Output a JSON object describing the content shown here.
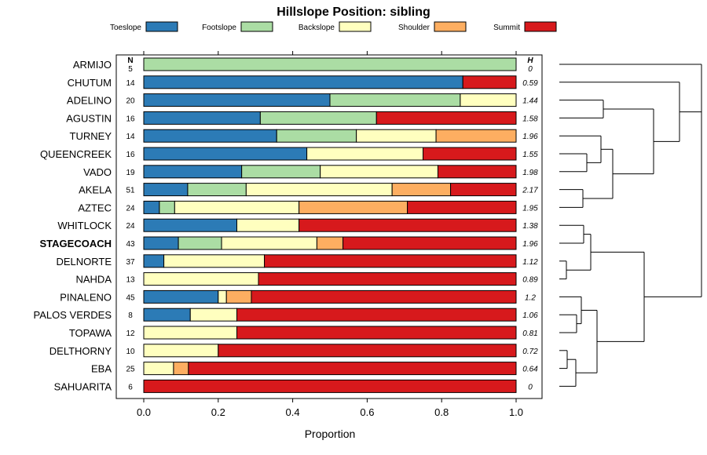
{
  "chart_data": {
    "type": "bar",
    "subtype": "stacked-horizontal-proportion",
    "title": "Hillslope Position: sibling",
    "xlabel": "Proportion",
    "xlim": [
      0,
      1
    ],
    "xticks": [
      0,
      0.2,
      0.4,
      0.6,
      0.8,
      1
    ],
    "xtick_labels": [
      "0.0",
      "0.2",
      "0.4",
      "0.6",
      "0.8",
      "1.0"
    ],
    "n_header": "N",
    "h_header": "H",
    "highlighted": "STAGECOACH",
    "legend": [
      {
        "name": "Toeslope",
        "color": "#2c7bb6"
      },
      {
        "name": "Footslope",
        "color": "#abdda4"
      },
      {
        "name": "Backslope",
        "color": "#ffffbf"
      },
      {
        "name": "Shoulder",
        "color": "#fdae61"
      },
      {
        "name": "Summit",
        "color": "#d7191c"
      }
    ],
    "categories": [
      "ARMIJO",
      "CHUTUM",
      "ADELINO",
      "AGUSTIN",
      "TURNEY",
      "QUEENCREEK",
      "VADO",
      "AKELA",
      "AZTEC",
      "WHITLOCK",
      "STAGECOACH",
      "DELNORTE",
      "NAHDA",
      "PINALENO",
      "PALOS VERDES",
      "TOPAWA",
      "DELTHORNY",
      "EBA",
      "SAHUARITA"
    ],
    "n": [
      "5",
      "14",
      "20",
      "16",
      "14",
      "16",
      "19",
      "51",
      "24",
      "24",
      "43",
      "37",
      "13",
      "45",
      "8",
      "12",
      "10",
      "25",
      "6"
    ],
    "h": [
      "0",
      "0.59",
      "1.44",
      "1.58",
      "1.96",
      "1.55",
      "1.98",
      "2.17",
      "1.95",
      "1.38",
      "1.96",
      "1.12",
      "0.89",
      "1.2",
      "1.06",
      "0.81",
      "0.72",
      "0.64",
      "0"
    ],
    "series": [
      {
        "name": "Toeslope",
        "values": [
          0.0,
          0.857,
          0.5,
          0.313,
          0.357,
          0.438,
          0.263,
          0.118,
          0.042,
          0.25,
          0.093,
          0.054,
          0.0,
          0.2,
          0.125,
          0.0,
          0.0,
          0.0,
          0.0
        ]
      },
      {
        "name": "Footslope",
        "values": [
          1.0,
          0.0,
          0.35,
          0.312,
          0.214,
          0.0,
          0.211,
          0.157,
          0.041,
          0.0,
          0.116,
          0.0,
          0.0,
          0.0,
          0.0,
          0.0,
          0.0,
          0.0,
          0.0
        ]
      },
      {
        "name": "Backslope",
        "values": [
          0.0,
          0.0,
          0.15,
          0.0,
          0.214,
          0.312,
          0.316,
          0.392,
          0.334,
          0.167,
          0.256,
          0.27,
          0.308,
          0.022,
          0.125,
          0.25,
          0.2,
          0.08,
          0.0
        ]
      },
      {
        "name": "Shoulder",
        "values": [
          0.0,
          0.0,
          0.0,
          0.0,
          0.215,
          0.0,
          0.0,
          0.157,
          0.291,
          0.0,
          0.07,
          0.0,
          0.0,
          0.067,
          0.0,
          0.0,
          0.0,
          0.04,
          0.0
        ]
      },
      {
        "name": "Summit",
        "values": [
          0.0,
          0.143,
          0.0,
          0.375,
          0.0,
          0.25,
          0.21,
          0.176,
          0.292,
          0.583,
          0.465,
          0.676,
          0.692,
          0.711,
          0.75,
          0.75,
          0.8,
          0.88,
          1.0
        ]
      }
    ],
    "dendrogram": {
      "leaves": [
        "ARMIJO",
        "CHUTUM",
        "ADELINO",
        "AGUSTIN",
        "TURNEY",
        "QUEENCREEK",
        "VADO",
        "AKELA",
        "AZTEC",
        "WHITLOCK",
        "STAGECOACH",
        "DELNORTE",
        "NAHDA",
        "PINALENO",
        "PALOS VERDES",
        "TOPAWA",
        "DELTHORNY",
        "EBA",
        "SAHUARITA"
      ],
      "merges": [
        {
          "left": [
            "AKELA"
          ],
          "right": [
            "AZTEC"
          ],
          "height": 0.08
        },
        {
          "left": [
            "QUEENCREEK"
          ],
          "right": [
            "VADO"
          ],
          "height": 0.12
        },
        {
          "left": [
            "WHITLOCK"
          ],
          "right": [
            "STAGECOACH"
          ],
          "height": 0.1
        },
        {
          "left": [
            "DELNORTE"
          ],
          "right": [
            "NAHDA"
          ],
          "height": 0.03
        },
        {
          "left": [
            "PALOS VERDES"
          ],
          "right": [
            "TOPAWA"
          ],
          "height": 0.07
        },
        {
          "left": [
            "DELTHORNY"
          ],
          "right": [
            "EBA"
          ],
          "height": 0.04
        },
        {
          "left": [
            "EBA"
          ],
          "right": [
            "SAHUARITA"
          ],
          "height": 0.09
        },
        {
          "left": [
            "ADELINO"
          ],
          "right": [
            "AGUSTIN"
          ],
          "height": 0.2
        }
      ]
    }
  }
}
